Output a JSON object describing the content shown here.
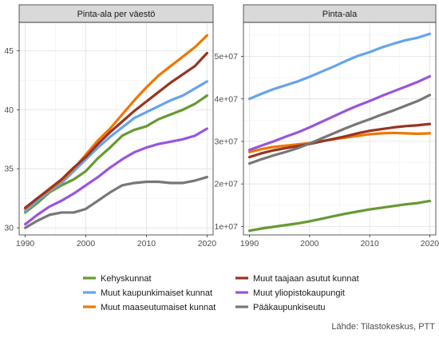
{
  "chart_data": [
    {
      "type": "line",
      "title": "Pinta-ala per väestö",
      "xlabel": "",
      "ylabel": "",
      "xlim": [
        1989,
        2021
      ],
      "ylim": [
        29.4,
        47.4
      ],
      "x_ticks": [
        1990,
        2000,
        2010,
        2020
      ],
      "y_ticks": [
        30,
        35,
        40,
        45
      ],
      "y_tick_labels": [
        "30",
        "35",
        "40",
        "45"
      ],
      "x": [
        1990,
        1992,
        1994,
        1996,
        1998,
        2000,
        2002,
        2004,
        2006,
        2008,
        2010,
        2012,
        2014,
        2016,
        2018,
        2020
      ],
      "series": [
        {
          "name": "Kehyskunnat",
          "color": "#669933",
          "values": [
            31.3,
            32.1,
            33.0,
            33.6,
            34.1,
            34.8,
            35.9,
            36.8,
            37.8,
            38.3,
            38.6,
            39.2,
            39.6,
            40.0,
            40.5,
            41.2
          ]
        },
        {
          "name": "Muut kaupunkimaiset kunnat",
          "color": "#66a3ee",
          "values": [
            31.4,
            32.3,
            33.1,
            33.8,
            34.8,
            35.8,
            36.8,
            37.7,
            38.5,
            39.3,
            39.8,
            40.3,
            40.8,
            41.2,
            41.8,
            42.4
          ]
        },
        {
          "name": "Muut maaseutumaiset kunnat",
          "color": "#ee7700",
          "values": [
            31.6,
            32.5,
            33.2,
            34.0,
            35.0,
            36.2,
            37.4,
            38.4,
            39.6,
            40.8,
            41.9,
            42.9,
            43.7,
            44.5,
            45.3,
            46.3
          ]
        },
        {
          "name": "Muut taajaan asutut kunnat",
          "color": "#993322",
          "values": [
            31.7,
            32.5,
            33.3,
            34.1,
            35.1,
            36.0,
            37.1,
            38.1,
            39.0,
            39.9,
            40.7,
            41.5,
            42.3,
            43.0,
            43.7,
            44.8
          ]
        },
        {
          "name": "Muut yliopistokaupungit",
          "color": "#9955dd",
          "values": [
            30.3,
            31.1,
            31.8,
            32.3,
            32.9,
            33.6,
            34.3,
            35.1,
            35.8,
            36.4,
            36.8,
            37.1,
            37.3,
            37.5,
            37.8,
            38.4
          ]
        },
        {
          "name": "Pääkaupunkiseutu",
          "color": "#777777",
          "values": [
            30.0,
            30.6,
            31.1,
            31.3,
            31.3,
            31.6,
            32.3,
            33.0,
            33.6,
            33.8,
            33.9,
            33.9,
            33.8,
            33.8,
            34.0,
            34.3
          ]
        }
      ],
      "grid": true
    },
    {
      "type": "line",
      "title": "Pinta-ala",
      "xlabel": "",
      "ylabel": "",
      "xlim": [
        1989,
        2021
      ],
      "ylim": [
        8000000,
        58000000
      ],
      "x_ticks": [
        1990,
        2000,
        2010,
        2020
      ],
      "y_ticks": [
        10000000,
        20000000,
        30000000,
        40000000,
        50000000
      ],
      "y_tick_labels": [
        "1e+07",
        "2e+07",
        "3e+07",
        "4e+07",
        "5e+07"
      ],
      "x": [
        1990,
        1992,
        1994,
        1996,
        1998,
        2000,
        2002,
        2004,
        2006,
        2008,
        2010,
        2012,
        2014,
        2016,
        2018,
        2020
      ],
      "series": [
        {
          "name": "Kehyskunnat",
          "color": "#669933",
          "values": [
            9000000,
            9500000,
            9900000,
            10300000,
            10700000,
            11200000,
            11800000,
            12400000,
            13000000,
            13500000,
            14000000,
            14400000,
            14800000,
            15200000,
            15500000,
            16000000
          ]
        },
        {
          "name": "Muut kaupunkimaiset kunnat",
          "color": "#66a3ee",
          "values": [
            40000000,
            41200000,
            42300000,
            43200000,
            44100000,
            45200000,
            46400000,
            47600000,
            48900000,
            50100000,
            51000000,
            52100000,
            53000000,
            53800000,
            54400000,
            55300000
          ]
        },
        {
          "name": "Muut maaseutumaiset kunnat",
          "color": "#ee7700",
          "values": [
            27500000,
            28200000,
            28700000,
            29000000,
            29300000,
            29600000,
            30100000,
            30500000,
            30900000,
            31300000,
            31700000,
            31900000,
            32000000,
            31900000,
            31800000,
            31900000
          ]
        },
        {
          "name": "Muut taajaan asutut kunnat",
          "color": "#993322",
          "values": [
            26300000,
            27200000,
            27900000,
            28400000,
            28900000,
            29400000,
            30000000,
            30600000,
            31200000,
            31900000,
            32500000,
            32900000,
            33300000,
            33600000,
            33800000,
            34100000
          ]
        },
        {
          "name": "Muut yliopistokaupungit",
          "color": "#9955dd",
          "values": [
            28000000,
            29000000,
            30000000,
            31100000,
            32100000,
            33300000,
            34600000,
            35900000,
            37200000,
            38400000,
            39500000,
            40700000,
            41800000,
            42900000,
            44000000,
            45300000
          ]
        },
        {
          "name": "Pääkaupunkiseutu",
          "color": "#777777",
          "values": [
            24800000,
            25800000,
            26700000,
            27500000,
            28400000,
            29500000,
            30700000,
            31900000,
            33100000,
            34200000,
            35200000,
            36300000,
            37300000,
            38400000,
            39500000,
            40900000
          ]
        }
      ],
      "grid": true
    }
  ],
  "legend": {
    "placement": "bottom",
    "items": [
      {
        "label": "Kehyskunnat",
        "color": "#669933"
      },
      {
        "label": "Muut taajaan asutut kunnat",
        "color": "#993322"
      },
      {
        "label": "Muut kaupunkimaiset kunnat",
        "color": "#66a3ee"
      },
      {
        "label": "Muut yliopistokaupungit",
        "color": "#9955dd"
      },
      {
        "label": "Muut maaseutumaiset kunnat",
        "color": "#ee7700"
      },
      {
        "label": "Pääkaupunkiseutu",
        "color": "#777777"
      }
    ]
  },
  "source": "Lähde: Tilastokeskus, PTT"
}
